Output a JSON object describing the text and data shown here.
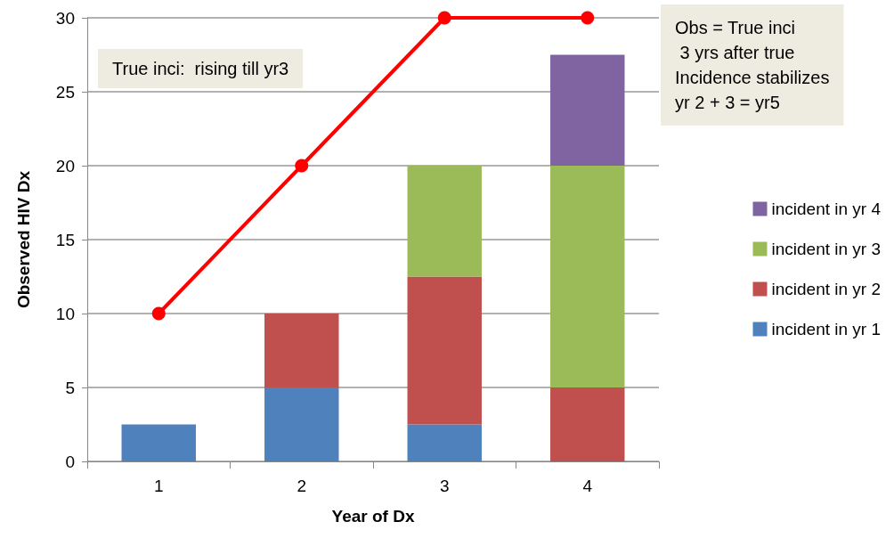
{
  "chart_data": {
    "type": "bar",
    "xlabel": "Year of Dx",
    "ylabel": "Observed HIV Dx",
    "categories": [
      "1",
      "2",
      "3",
      "4"
    ],
    "stacked": true,
    "series": [
      {
        "name": "incident in yr 1",
        "color": "#4f81bd",
        "values": [
          2.5,
          5,
          2.5,
          null
        ]
      },
      {
        "name": "incident in yr 2",
        "color": "#c0504d",
        "values": [
          null,
          5,
          10,
          5
        ]
      },
      {
        "name": "incident in yr 3",
        "color": "#9bbb59",
        "values": [
          null,
          null,
          7.5,
          15
        ]
      },
      {
        "name": "incident in yr 4",
        "color": "#8064a2",
        "values": [
          null,
          null,
          null,
          7.5
        ]
      },
      {
        "type": "line",
        "color": "#ff0000",
        "values": [
          10,
          20,
          30,
          30
        ],
        "marker": "circle",
        "line_style": "solid"
      }
    ],
    "ylim": [
      0,
      30
    ],
    "yticks": [
      0,
      5,
      10,
      15,
      20,
      25,
      30
    ],
    "grid": "y",
    "legend": "right",
    "annotations": [
      "True inci:  rising till yr3",
      "Obs = True inci\n 3 yrs after true\nIncidence stabilizes\nyr 2 + 3 = yr5"
    ]
  }
}
